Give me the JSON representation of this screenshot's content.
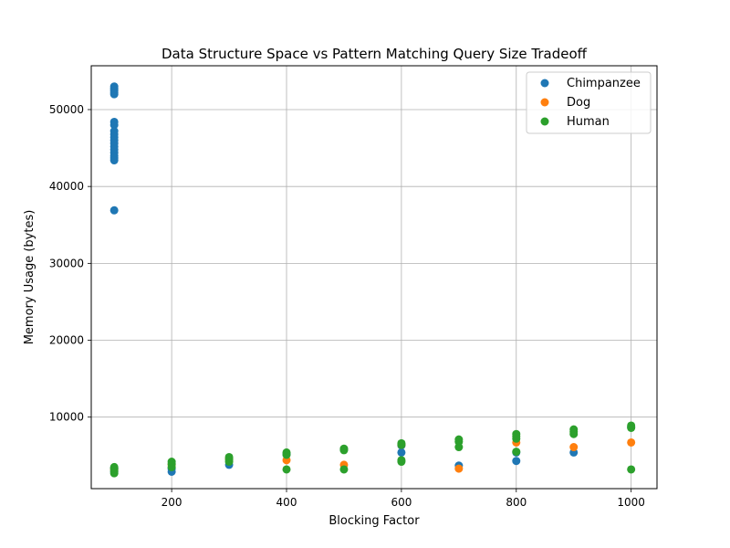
{
  "chart_data": {
    "type": "scatter",
    "title": "Data Structure Space vs Pattern Matching Query Size Tradeoff",
    "xlabel": "Blocking Factor",
    "ylabel": "Memory Usage (bytes)",
    "xlim": [
      60,
      1045
    ],
    "ylim": [
      700,
      55700
    ],
    "xticks": [
      200,
      400,
      600,
      800,
      1000
    ],
    "yticks": [
      10000,
      20000,
      30000,
      40000,
      50000
    ],
    "grid": true,
    "legend_position": "top-right",
    "series": [
      {
        "name": "Chimpanzee",
        "color": "#1f77b4",
        "points": [
          [
            100,
            53000
          ],
          [
            100,
            52800
          ],
          [
            100,
            52600
          ],
          [
            100,
            52400
          ],
          [
            100,
            52200
          ],
          [
            100,
            52000
          ],
          [
            100,
            48400
          ],
          [
            100,
            48000
          ],
          [
            100,
            47200
          ],
          [
            100,
            46800
          ],
          [
            100,
            46400
          ],
          [
            100,
            46000
          ],
          [
            100,
            45600
          ],
          [
            100,
            45200
          ],
          [
            100,
            44800
          ],
          [
            100,
            44400
          ],
          [
            100,
            44000
          ],
          [
            100,
            43700
          ],
          [
            100,
            43400
          ],
          [
            100,
            36900
          ],
          [
            100,
            3300
          ],
          [
            100,
            2900
          ],
          [
            200,
            3300
          ],
          [
            200,
            2900
          ],
          [
            300,
            3800
          ],
          [
            400,
            5200
          ],
          [
            500,
            5800
          ],
          [
            600,
            6300
          ],
          [
            600,
            5400
          ],
          [
            700,
            3700
          ],
          [
            800,
            4300
          ],
          [
            800,
            5400
          ],
          [
            900,
            5400
          ],
          [
            1000,
            8700
          ]
        ]
      },
      {
        "name": "Dog",
        "color": "#ff7f0e",
        "points": [
          [
            100,
            3200
          ],
          [
            200,
            3800
          ],
          [
            300,
            4600
          ],
          [
            400,
            4400
          ],
          [
            500,
            3800
          ],
          [
            600,
            6400
          ],
          [
            700,
            3300
          ],
          [
            800,
            6700
          ],
          [
            900,
            6100
          ],
          [
            1000,
            6700
          ]
        ]
      },
      {
        "name": "Human",
        "color": "#2ca02c",
        "points": [
          [
            100,
            3500
          ],
          [
            100,
            3300
          ],
          [
            100,
            3000
          ],
          [
            100,
            2700
          ],
          [
            200,
            4200
          ],
          [
            200,
            3900
          ],
          [
            200,
            3500
          ],
          [
            300,
            4800
          ],
          [
            300,
            4500
          ],
          [
            300,
            4200
          ],
          [
            400,
            5400
          ],
          [
            400,
            5100
          ],
          [
            400,
            3200
          ],
          [
            500,
            5900
          ],
          [
            500,
            5700
          ],
          [
            500,
            3200
          ],
          [
            600,
            6600
          ],
          [
            600,
            6400
          ],
          [
            600,
            4400
          ],
          [
            600,
            4200
          ],
          [
            700,
            7100
          ],
          [
            700,
            6800
          ],
          [
            700,
            6100
          ],
          [
            800,
            7800
          ],
          [
            800,
            7500
          ],
          [
            800,
            7200
          ],
          [
            800,
            5500
          ],
          [
            900,
            8400
          ],
          [
            900,
            8100
          ],
          [
            900,
            7800
          ],
          [
            1000,
            8900
          ],
          [
            1000,
            8600
          ],
          [
            1000,
            3200
          ]
        ]
      }
    ]
  }
}
